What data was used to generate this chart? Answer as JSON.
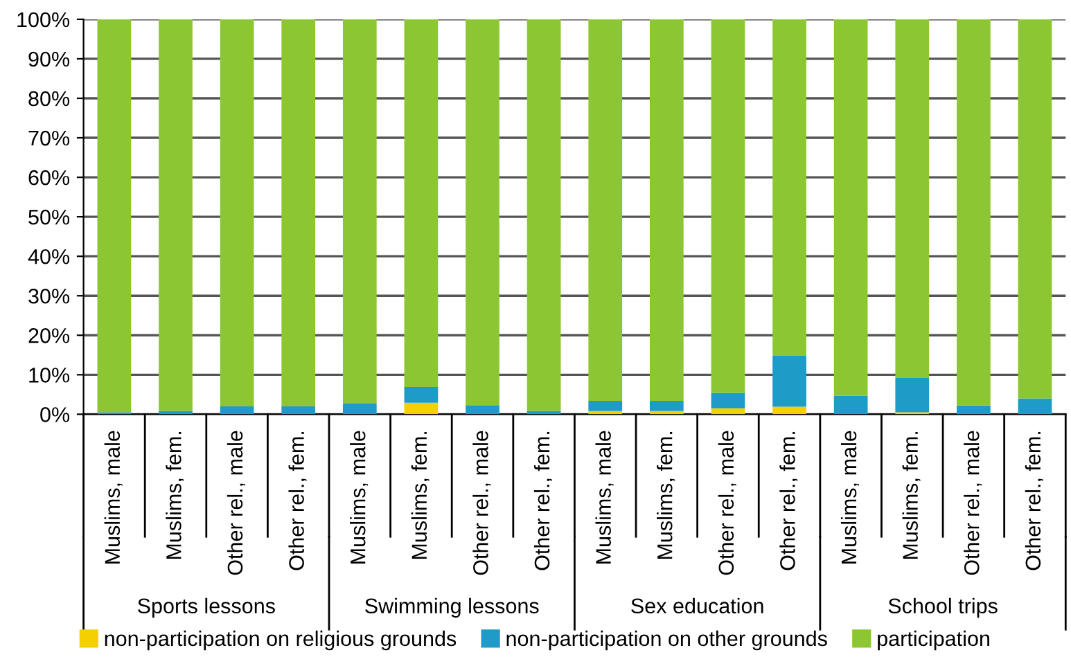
{
  "chart_data": {
    "type": "bar",
    "stacked": true,
    "categories": [
      "Muslims, male",
      "Muslims, fem.",
      "Other rel., male",
      "Other rel., fem.",
      "Muslims, male",
      "Muslims, fem.",
      "Other rel., male",
      "Other rel., fem.",
      "Muslims, male",
      "Muslims, fem.",
      "Other rel., male",
      "Other rel., fem.",
      "Muslims, male",
      "Muslims, fem.",
      "Other rel., male",
      "Other rel., fem."
    ],
    "series": [
      {
        "name": "non-participation on religious grounds",
        "color": "#f5d000",
        "values": [
          0,
          0,
          0,
          0,
          0,
          2.9,
          0,
          0,
          0.8,
          0.8,
          1.5,
          1.9,
          0,
          0.5,
          0,
          0
        ]
      },
      {
        "name": "non-participation on other grounds",
        "color": "#1e9bc6",
        "values": [
          0.5,
          0.8,
          2.0,
          2.0,
          2.7,
          4.0,
          2.3,
          0.8,
          2.6,
          2.6,
          3.9,
          12.9,
          4.7,
          8.7,
          2.2,
          4.0
        ]
      },
      {
        "name": "participation",
        "color": "#8cc733",
        "values": [
          99.5,
          99.2,
          98.0,
          98.0,
          97.3,
          93.1,
          97.7,
          99.2,
          96.6,
          96.6,
          94.6,
          85.2,
          95.3,
          90.8,
          97.8,
          96.0
        ]
      }
    ],
    "ylim": [
      0,
      100
    ],
    "yticks": [
      {
        "value": 0,
        "label": "0%"
      },
      {
        "value": 10,
        "label": "10%"
      },
      {
        "value": 20,
        "label": "20%"
      },
      {
        "value": 30,
        "label": "30%"
      },
      {
        "value": 40,
        "label": "40%"
      },
      {
        "value": 50,
        "label": "50%"
      },
      {
        "value": 60,
        "label": "60%"
      },
      {
        "value": 70,
        "label": "70%"
      },
      {
        "value": 80,
        "label": "80%"
      },
      {
        "value": 90,
        "label": "90%"
      },
      {
        "value": 100,
        "label": "100%"
      }
    ],
    "grid": "y",
    "legend": "bottom",
    "annotations": [
      "Sports lessons",
      "Swimming lessons",
      "Sex education",
      "School trips"
    ]
  }
}
